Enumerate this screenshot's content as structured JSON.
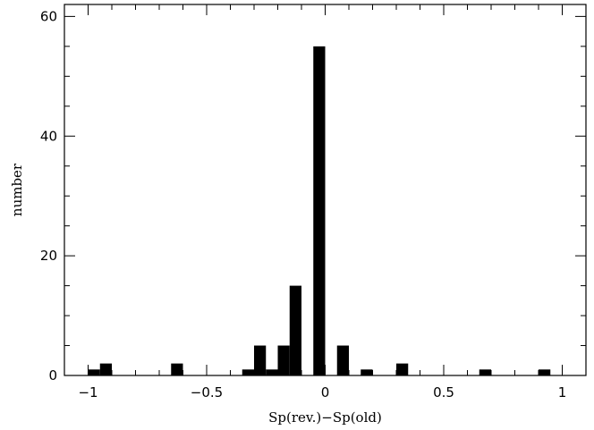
{
  "chart_data": {
    "type": "bar",
    "title": "",
    "xlabel": "Sp(rev.)−Sp(old)",
    "ylabel": "number",
    "xlim": [
      -1.1,
      1.1
    ],
    "ylim": [
      0,
      62
    ],
    "bin_width": 0.05,
    "xticks": [
      -1,
      -0.5,
      0,
      0.5,
      1
    ],
    "xtick_labels": [
      "−1",
      "−0.5",
      "0",
      "0.5",
      "1"
    ],
    "yticks": [
      0,
      20,
      40,
      60
    ],
    "ytick_labels": [
      "0",
      "20",
      "40",
      "60"
    ],
    "grid": false,
    "series": [
      {
        "bins": [
          {
            "x0": -1.0,
            "x1": -0.95,
            "value": 1
          },
          {
            "x0": -0.95,
            "x1": -0.9,
            "value": 2
          },
          {
            "x0": -0.65,
            "x1": -0.6,
            "value": 2
          },
          {
            "x0": -0.35,
            "x1": -0.3,
            "value": 1
          },
          {
            "x0": -0.3,
            "x1": -0.25,
            "value": 5
          },
          {
            "x0": -0.25,
            "x1": -0.2,
            "value": 1
          },
          {
            "x0": -0.2,
            "x1": -0.15,
            "value": 5
          },
          {
            "x0": -0.15,
            "x1": -0.1,
            "value": 15
          },
          {
            "x0": -0.05,
            "x1": 0.0,
            "value": 55
          },
          {
            "x0": 0.05,
            "x1": 0.1,
            "value": 5
          },
          {
            "x0": 0.15,
            "x1": 0.2,
            "value": 1
          },
          {
            "x0": 0.3,
            "x1": 0.35,
            "value": 2
          },
          {
            "x0": 0.65,
            "x1": 0.7,
            "value": 1
          },
          {
            "x0": 0.9,
            "x1": 0.95,
            "value": 1
          }
        ]
      }
    ]
  }
}
